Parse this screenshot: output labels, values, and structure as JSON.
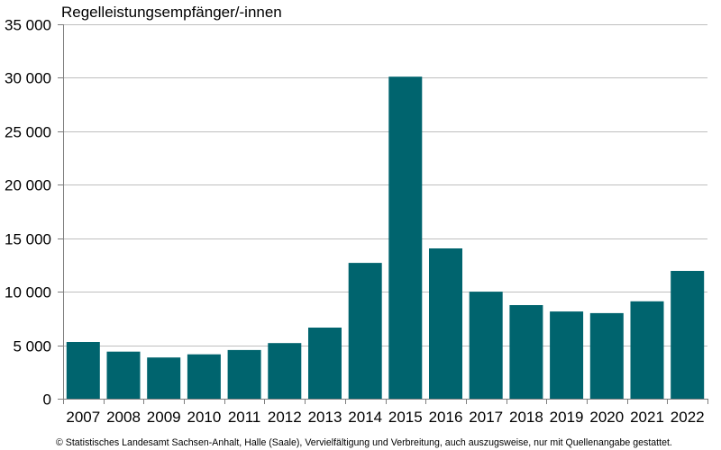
{
  "chart_data": {
    "type": "bar",
    "title": "",
    "xlabel": "",
    "ylabel": "Regelleistungsempfänger/-innen",
    "categories": [
      "2007",
      "2008",
      "2009",
      "2010",
      "2011",
      "2012",
      "2013",
      "2014",
      "2015",
      "2016",
      "2017",
      "2018",
      "2019",
      "2020",
      "2021",
      "2022"
    ],
    "values": [
      5300,
      4400,
      3850,
      4150,
      4550,
      5200,
      6650,
      12700,
      30100,
      14050,
      10000,
      8750,
      8150,
      8000,
      9100,
      11950
    ],
    "ylim": [
      0,
      35000
    ],
    "yticks": [
      0,
      5000,
      10000,
      15000,
      20000,
      25000,
      30000,
      35000
    ],
    "ytick_labels": [
      "0",
      "5 000",
      "10 000",
      "15 000",
      "20 000",
      "25 000",
      "30 000",
      "35 000"
    ],
    "grid": true,
    "legend": "none",
    "bar_color": "#00646e",
    "grid_color": "#bfbfbf",
    "axis_color": "#7f7f7f"
  },
  "footer": {
    "source": "© Statistisches Landesamt Sachsen-Anhalt, Halle (Saale), Vervielfältigung und Verbreitung, auch auszugsweise, nur mit Quellenangabe gestattet."
  }
}
